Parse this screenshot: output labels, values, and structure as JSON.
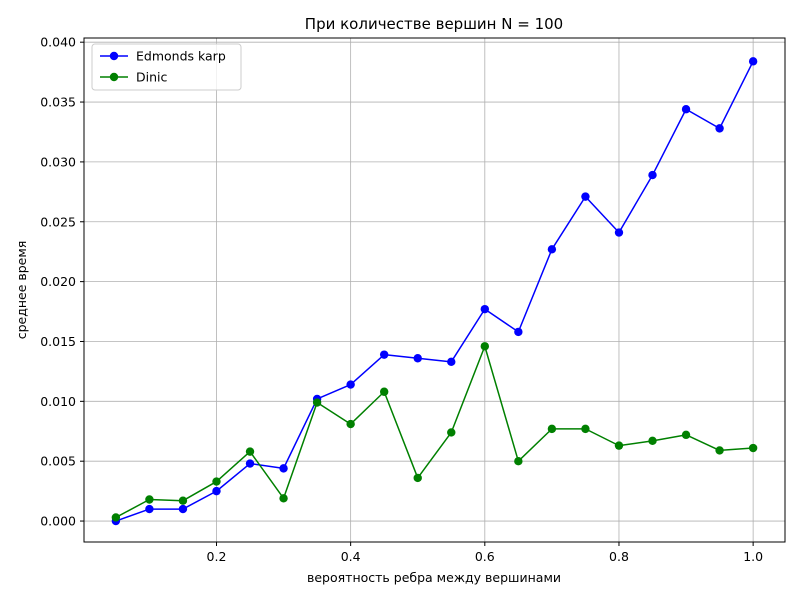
{
  "chart_data": {
    "type": "line",
    "title": "При количестве вершин N = 100",
    "xlabel": "вероятность ребра между вершинами",
    "ylabel": "среднее время",
    "x": [
      0.05,
      0.1,
      0.15,
      0.2,
      0.25,
      0.3,
      0.35,
      0.4,
      0.45,
      0.5,
      0.55,
      0.6,
      0.65,
      0.7,
      0.75,
      0.8,
      0.85,
      0.9,
      0.95,
      1.0
    ],
    "series": [
      {
        "name": "Edmonds karp",
        "color": "#0000ff",
        "marker": "circle",
        "values": [
          0.0,
          0.001,
          0.001,
          0.0025,
          0.0048,
          0.0044,
          0.0102,
          0.0114,
          0.0139,
          0.0136,
          0.0133,
          0.0177,
          0.0158,
          0.0227,
          0.0271,
          0.0241,
          0.0289,
          0.0344,
          0.0328,
          0.0384
        ]
      },
      {
        "name": "Dinic",
        "color": "#008000",
        "marker": "circle",
        "values": [
          0.0003,
          0.0018,
          0.0017,
          0.0033,
          0.0058,
          0.0019,
          0.0099,
          0.0081,
          0.0108,
          0.0036,
          0.0074,
          0.0146,
          0.005,
          0.0077,
          0.0077,
          0.0063,
          0.0067,
          0.0072,
          0.0059,
          0.0061
        ]
      }
    ],
    "xlim": [
      0.0025,
      1.0475
    ],
    "ylim": [
      -0.00175,
      0.04035
    ],
    "xticks": [
      0.2,
      0.4,
      0.6,
      0.8,
      1.0
    ],
    "xtick_labels": [
      "0.2",
      "0.4",
      "0.6",
      "0.8",
      "1.0"
    ],
    "yticks": [
      0.0,
      0.005,
      0.01,
      0.015,
      0.02,
      0.025,
      0.03,
      0.035,
      0.04
    ],
    "ytick_labels": [
      "0.000",
      "0.005",
      "0.010",
      "0.015",
      "0.020",
      "0.025",
      "0.030",
      "0.035",
      "0.040"
    ],
    "grid": true,
    "legend_position": "upper-left"
  }
}
